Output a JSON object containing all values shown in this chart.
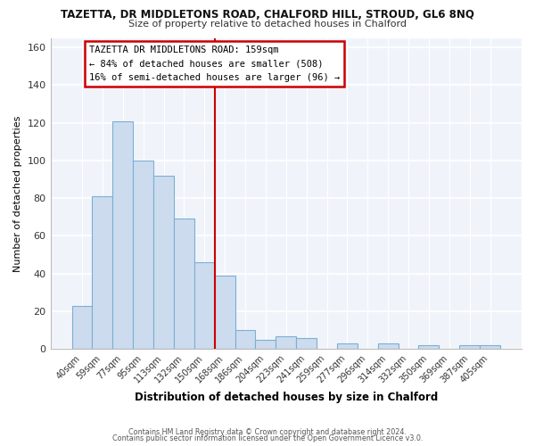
{
  "title": "TAZETTA, DR MIDDLETONS ROAD, CHALFORD HILL, STROUD, GL6 8NQ",
  "subtitle": "Size of property relative to detached houses in Chalford",
  "xlabel": "Distribution of detached houses by size in Chalford",
  "ylabel": "Number of detached properties",
  "bar_labels": [
    "40sqm",
    "59sqm",
    "77sqm",
    "95sqm",
    "113sqm",
    "132sqm",
    "150sqm",
    "168sqm",
    "186sqm",
    "204sqm",
    "223sqm",
    "241sqm",
    "259sqm",
    "277sqm",
    "296sqm",
    "314sqm",
    "332sqm",
    "350sqm",
    "369sqm",
    "387sqm",
    "405sqm"
  ],
  "bar_values": [
    23,
    81,
    121,
    100,
    92,
    69,
    46,
    39,
    10,
    5,
    7,
    6,
    0,
    3,
    0,
    3,
    0,
    2,
    0,
    2,
    2
  ],
  "bar_color": "#ccdcee",
  "bar_edge_color": "#7bafd4",
  "ylim": [
    0,
    165
  ],
  "yticks": [
    0,
    20,
    40,
    60,
    80,
    100,
    120,
    140,
    160
  ],
  "vline_x_index": 6.5,
  "vline_color": "#cc0000",
  "annotation_title": "TAZETTA DR MIDDLETONS ROAD: 159sqm",
  "annotation_line1": "← 84% of detached houses are smaller (508)",
  "annotation_line2": "16% of semi-detached houses are larger (96) →",
  "annotation_box_edge": "#cc0000",
  "footer1": "Contains HM Land Registry data © Crown copyright and database right 2024.",
  "footer2": "Contains public sector information licensed under the Open Government Licence v3.0.",
  "bg_color": "#ffffff",
  "plot_bg_color": "#f0f4fa"
}
